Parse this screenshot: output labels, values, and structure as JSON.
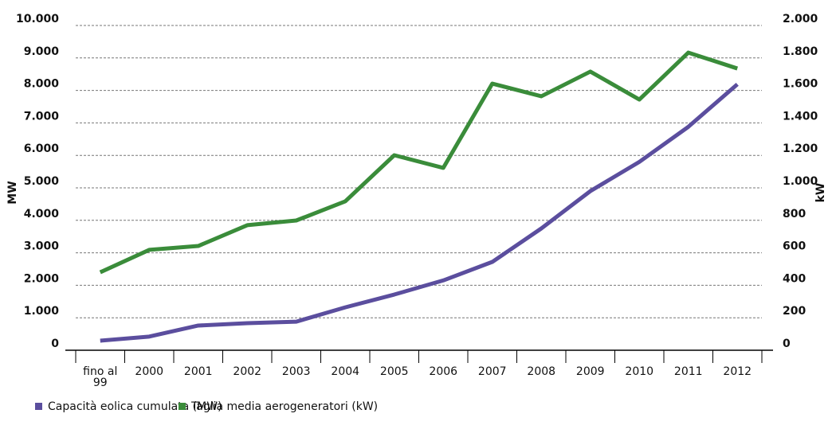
{
  "chart_data": {
    "type": "line",
    "categories": [
      "fino al 99",
      "2000",
      "2001",
      "2002",
      "2003",
      "2004",
      "2005",
      "2006",
      "2007",
      "2008",
      "2009",
      "2010",
      "2011",
      "2012"
    ],
    "series": [
      {
        "name": "Capacità eolica cumulata (MW)",
        "color": "#5b4e9e",
        "values": [
          294,
          420,
          760,
          833,
          880,
          1320,
          1715,
          2150,
          2720,
          3750,
          4900,
          5800,
          6880,
          8190
        ]
      },
      {
        "name": "Taglia media aerogeneratori (kW)",
        "color": "#3a8c3a",
        "axis": "y2",
        "values": [
          480,
          618,
          642,
          770,
          799,
          917,
          1201,
          1123,
          1642,
          1564,
          1716,
          1544,
          1833,
          1735
        ]
      }
    ],
    "ylabel": "MW",
    "y2label": "kW",
    "ylim": [
      0,
      10000
    ],
    "yticks": [
      0,
      {
        "value": 1000,
        "label": "1.000"
      },
      {
        "value": 2000,
        "label": "2.000"
      },
      {
        "value": 3000,
        "label": "3.000"
      },
      {
        "value": 4000,
        "label": "4.000"
      },
      {
        "value": 5000,
        "label": "5.000"
      },
      {
        "value": 6000,
        "label": "6.000"
      },
      {
        "value": 7000,
        "label": "7.000"
      },
      {
        "value": 8000,
        "label": "8.000"
      },
      {
        "value": 9000,
        "label": "9.000"
      },
      {
        "value": 10000,
        "label": "10.000"
      }
    ],
    "y2lim": [
      0,
      2000
    ],
    "y2ticks": [
      0,
      200,
      400,
      600,
      800,
      {
        "value": 1000,
        "label": "1.000"
      },
      {
        "value": 1200,
        "label": "1.200"
      },
      {
        "value": 1400,
        "label": "1.400"
      },
      {
        "value": 1600,
        "label": "1.600"
      },
      {
        "value": 1800,
        "label": "1.800"
      },
      {
        "value": 2000,
        "label": "2.000"
      }
    ],
    "grid": true,
    "legend": "bottom-left"
  }
}
